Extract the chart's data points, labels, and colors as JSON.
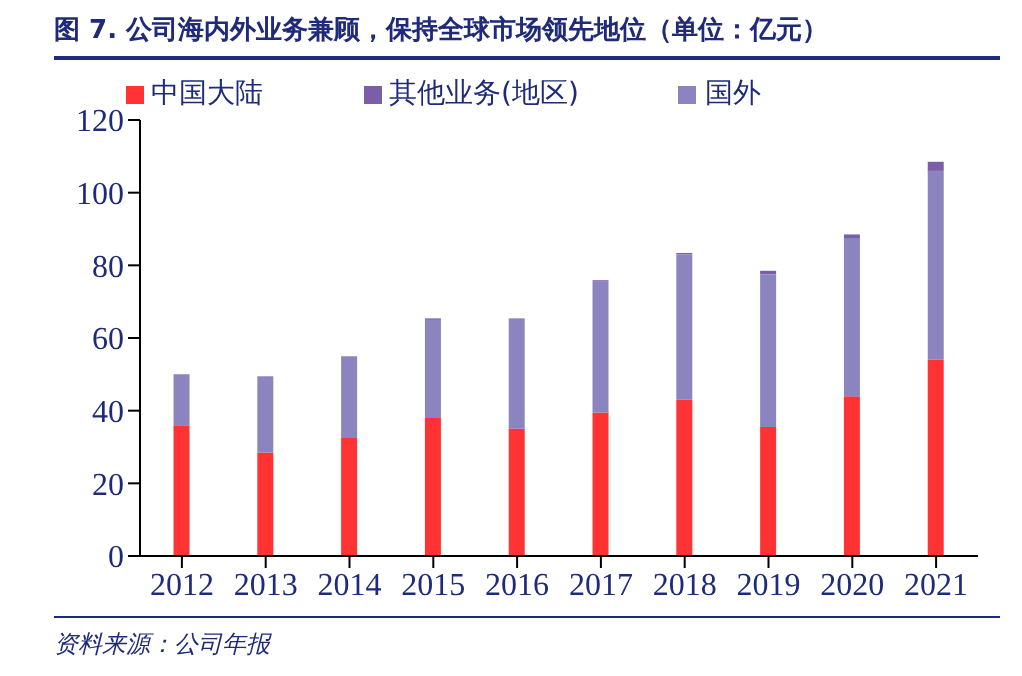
{
  "chart_data": {
    "type": "bar",
    "title": "图 7. 公司海内外业务兼顾，保持全球市场领先地位（单位：亿元）",
    "categories": [
      "2012",
      "2013",
      "2014",
      "2015",
      "2016",
      "2017",
      "2018",
      "2019",
      "2020",
      "2021"
    ],
    "series": [
      {
        "name": "中国大陆",
        "color": "#ff3333",
        "values": [
          36,
          28.5,
          32.5,
          38,
          35,
          39.5,
          43,
          35.5,
          44,
          54
        ]
      },
      {
        "name": "国外",
        "color": "#8b84bf",
        "values": [
          14,
          21,
          22.5,
          27,
          30,
          36,
          40,
          42,
          43.5,
          52
        ]
      },
      {
        "name": "其他业务(地区)",
        "color": "#7b5ea7",
        "values": [
          0,
          0,
          0,
          0.4,
          0.4,
          0.4,
          0.4,
          1,
          1,
          2.5
        ]
      }
    ],
    "stacked": true,
    "ylim": [
      0,
      120
    ],
    "yticks": [
      0,
      20,
      40,
      60,
      80,
      100,
      120
    ],
    "grid": false,
    "legend": "top",
    "annotations": [
      "资料来源：公司年报"
    ]
  }
}
